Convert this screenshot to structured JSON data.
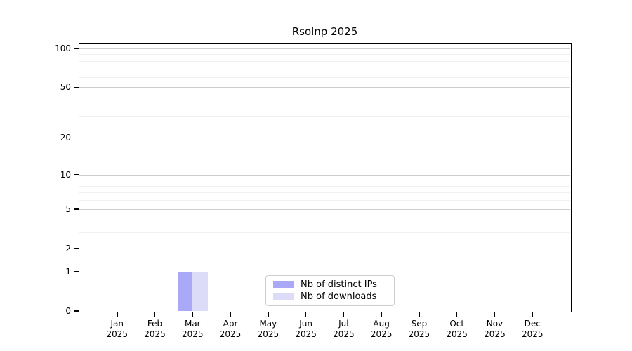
{
  "title": "Rsolnp 2025",
  "chart_data": {
    "type": "bar",
    "title": "Rsolnp 2025",
    "categories": [
      "Jan 2025",
      "Feb 2025",
      "Mar 2025",
      "Apr 2025",
      "May 2025",
      "Jun 2025",
      "Jul 2025",
      "Aug 2025",
      "Sep 2025",
      "Oct 2025",
      "Nov 2025",
      "Dec 2025"
    ],
    "series": [
      {
        "name": "Nb of distinct IPs",
        "color": "#a9a9f7",
        "values": [
          0,
          0,
          1,
          0,
          0,
          0,
          0,
          0,
          0,
          0,
          0,
          0
        ]
      },
      {
        "name": "Nb of downloads",
        "color": "#dcdcf9",
        "values": [
          0,
          0,
          1,
          0,
          0,
          0,
          0,
          0,
          0,
          0,
          0,
          0
        ]
      }
    ],
    "xlabel": "",
    "ylabel": "",
    "yscale": "log1p",
    "ylim": [
      0,
      110
    ],
    "yticks_major": [
      0,
      1,
      2,
      5,
      10,
      20,
      50,
      100
    ],
    "yticks_minor": [
      3,
      4,
      6,
      7,
      8,
      9,
      30,
      40,
      60,
      70,
      80,
      90
    ],
    "grid": "horizontal",
    "legend_position": "lower center"
  },
  "colors": {
    "background": "#ffffff",
    "spine": "#000000",
    "grid_major": "#cecece",
    "grid_minor": "#f0f0f0",
    "legend_border": "#cccccc",
    "text": "#000000"
  }
}
